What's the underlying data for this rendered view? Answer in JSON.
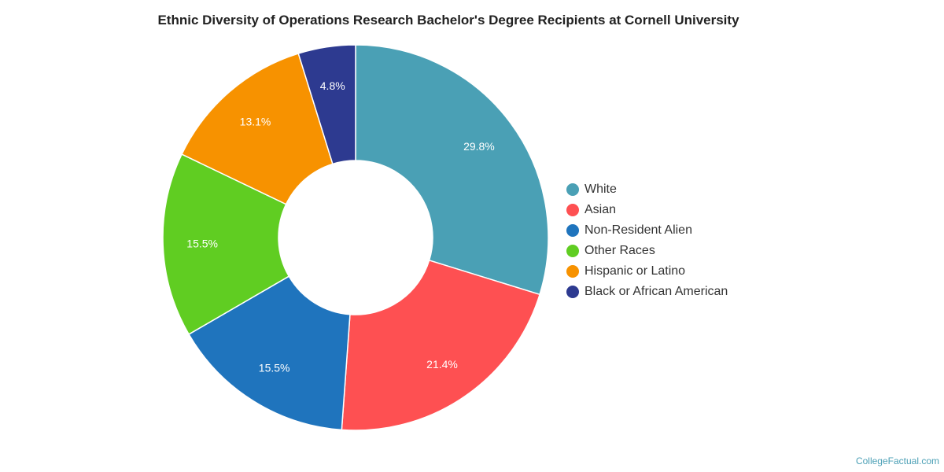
{
  "chart_data": {
    "type": "pie",
    "variant": "donut",
    "title": "Ethnic Diversity of Operations Research Bachelor's Degree Recipients at Cornell University",
    "slices": [
      {
        "label": "White",
        "value": 29.8,
        "value_label": "29.8%",
        "color": "#4aa0b5"
      },
      {
        "label": "Asian",
        "value": 21.4,
        "value_label": "21.4%",
        "color": "#fe5052"
      },
      {
        "label": "Non-Resident Alien",
        "value": 15.5,
        "value_label": "15.5%",
        "color": "#1f74bd"
      },
      {
        "label": "Other Races",
        "value": 15.5,
        "value_label": "15.5%",
        "color": "#60cd22"
      },
      {
        "label": "Hispanic or Latino",
        "value": 13.1,
        "value_label": "13.1%",
        "color": "#f79200"
      },
      {
        "label": "Black or African American",
        "value": 4.8,
        "value_label": "4.8%",
        "color": "#2d3a90"
      }
    ],
    "legend_position": "right"
  },
  "footer": {
    "credit": "CollegeFactual.com"
  }
}
